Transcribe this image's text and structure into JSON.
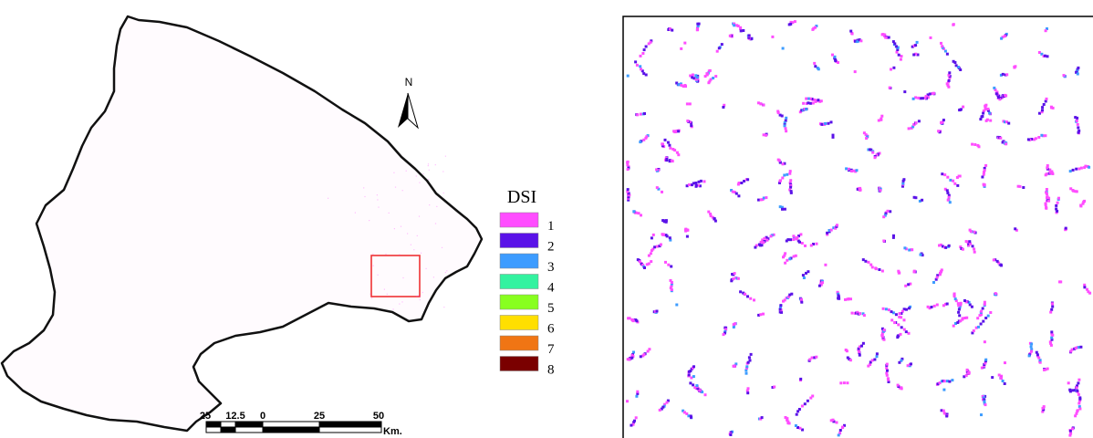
{
  "north_arrow": "N",
  "legend": {
    "title": "DSI",
    "items": [
      {
        "label": "1",
        "color": "#ff4dff"
      },
      {
        "label": "2",
        "color": "#5a12e8"
      },
      {
        "label": "3",
        "color": "#3d9cff"
      },
      {
        "label": "4",
        "color": "#33f2a0"
      },
      {
        "label": "5",
        "color": "#88ff1f"
      },
      {
        "label": "6",
        "color": "#ffdf00"
      },
      {
        "label": "7",
        "color": "#f07514"
      },
      {
        "label": "8",
        "color": "#7a0000"
      }
    ]
  },
  "scale_bar": {
    "labels": [
      "25",
      "12.5",
      "0",
      "25",
      "50"
    ],
    "unit": "Km."
  }
}
